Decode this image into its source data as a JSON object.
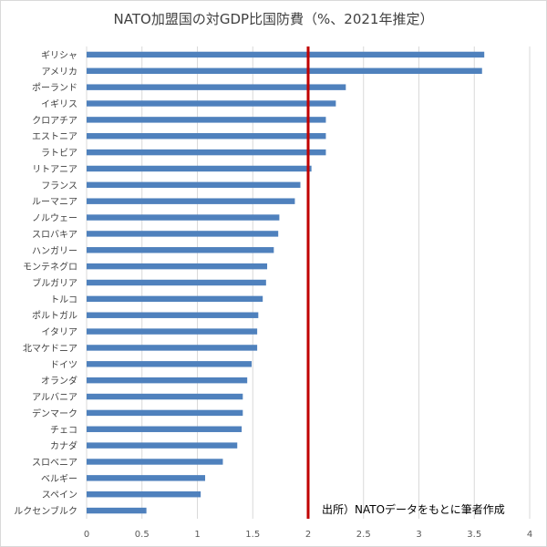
{
  "chart_data": {
    "type": "bar",
    "orientation": "horizontal",
    "title": "NATO加盟国の対GDP比国防費（%、2021年推定）",
    "source_note": "出所）NATOデータをもとに筆者作成",
    "categories": [
      "ギリシャ",
      "アメリカ",
      "ポーランド",
      "イギリス",
      "クロアチア",
      "エストニア",
      "ラトビア",
      "リトアニア",
      "フランス",
      "ルーマニア",
      "ノルウェー",
      "スロバキア",
      "ハンガリー",
      "モンテネグロ",
      "ブルガリア",
      "トルコ",
      "ポルトガル",
      "イタリア",
      "北マケドニア",
      "ドイツ",
      "オランダ",
      "アルバニア",
      "デンマーク",
      "チェコ",
      "カナダ",
      "スロベニア",
      "ベルギー",
      "スペイン",
      "ルクセンブルク"
    ],
    "values": [
      3.59,
      3.57,
      2.34,
      2.25,
      2.16,
      2.16,
      2.16,
      2.03,
      1.93,
      1.88,
      1.74,
      1.73,
      1.69,
      1.63,
      1.62,
      1.59,
      1.55,
      1.54,
      1.54,
      1.49,
      1.45,
      1.41,
      1.41,
      1.4,
      1.36,
      1.23,
      1.07,
      1.03,
      0.54
    ],
    "xlim": [
      0,
      4
    ],
    "xticks": [
      "0",
      "0.5",
      "1",
      "1.5",
      "2",
      "2.5",
      "3",
      "3.5",
      "4"
    ],
    "reference_line": 2,
    "grid": "vertical",
    "bar_color": "#4f81bd",
    "reference_color": "#c00000"
  }
}
